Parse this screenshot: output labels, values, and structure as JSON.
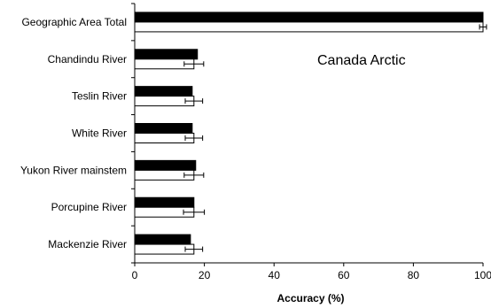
{
  "chart_data": {
    "type": "bar",
    "orientation": "horizontal",
    "categories": [
      "Geographic Area Total",
      "Chandindu River",
      "Teslin River",
      "White River",
      "Yukon River mainstem",
      "Porcupine River",
      "Mackenzie River"
    ],
    "series": [
      {
        "fill": "#000000",
        "values": [
          100,
          18,
          16.5,
          16.5,
          17.5,
          17,
          16
        ]
      },
      {
        "fill": "#ffffff",
        "values": [
          100,
          17,
          17,
          17,
          17,
          17,
          17
        ],
        "error": [
          1,
          2.8,
          2.5,
          2.5,
          2.8,
          3,
          2.5
        ]
      }
    ],
    "annotation": "Canada Arctic",
    "xlabel": "Accuracy (%)",
    "ylabel": "",
    "xlim": [
      0,
      100
    ],
    "xticks": [
      "0",
      "20",
      "40",
      "60",
      "80",
      "100"
    ],
    "grid": false
  }
}
